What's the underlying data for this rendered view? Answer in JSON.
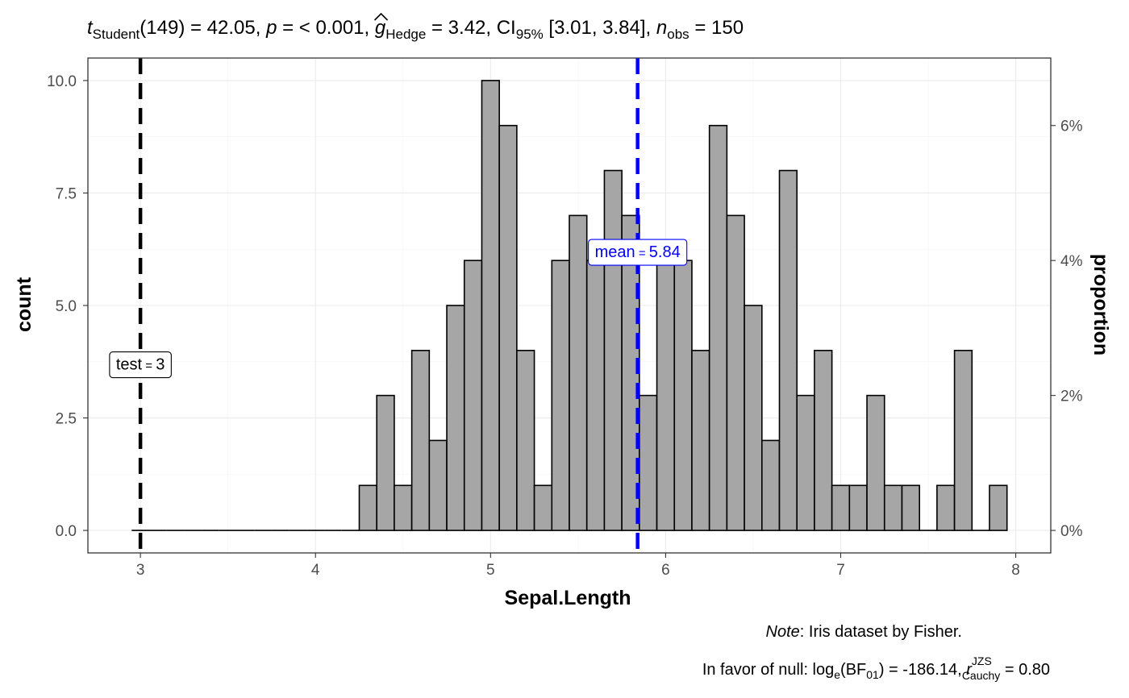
{
  "chart_data": {
    "type": "bar",
    "subtitle": {
      "t_prefix": "t",
      "t_sub": "Student",
      "t_stat": "(149) = 42.05, ",
      "p_label": "p",
      "p_value": " = < 0.001, ",
      "g_label": "g",
      "g_sub": "Hedge",
      "g_value": " = 3.42, CI",
      "ci_sub": "95%",
      "ci_value": " [3.01, 3.84], ",
      "n_label": "n",
      "n_sub": "obs",
      "n_value": " = 150"
    },
    "xlabel": "Sepal.Length",
    "ylabel": "count",
    "y2label": "proportion",
    "xlim": [
      2.7,
      8.2
    ],
    "ylim": [
      -0.5,
      10.5
    ],
    "x_ticks": [
      3,
      4,
      5,
      6,
      7,
      8
    ],
    "x_tick_labels": [
      "3",
      "4",
      "5",
      "6",
      "7",
      "8"
    ],
    "y_ticks": [
      0,
      2.5,
      5,
      7.5,
      10
    ],
    "y_tick_labels": [
      "0.0",
      "2.5",
      "5.0",
      "7.5",
      "10.0"
    ],
    "y2_ticks": [
      0,
      0.02,
      0.04,
      0.06
    ],
    "y2_tick_labels": [
      "0%",
      "2%",
      "4%",
      "6%"
    ],
    "n_obs": 150,
    "bin_width": 0.1,
    "bins": [
      {
        "x": 3.0,
        "count": 0
      },
      {
        "x": 3.1,
        "count": 0
      },
      {
        "x": 3.2,
        "count": 0
      },
      {
        "x": 3.3,
        "count": 0
      },
      {
        "x": 3.4,
        "count": 0
      },
      {
        "x": 3.5,
        "count": 0
      },
      {
        "x": 3.6,
        "count": 0
      },
      {
        "x": 3.7,
        "count": 0
      },
      {
        "x": 3.8,
        "count": 0
      },
      {
        "x": 3.9,
        "count": 0
      },
      {
        "x": 4.0,
        "count": 0
      },
      {
        "x": 4.1,
        "count": 0
      },
      {
        "x": 4.2,
        "count": 0
      },
      {
        "x": 4.3,
        "count": 1
      },
      {
        "x": 4.4,
        "count": 3
      },
      {
        "x": 4.5,
        "count": 1
      },
      {
        "x": 4.6,
        "count": 4
      },
      {
        "x": 4.7,
        "count": 2
      },
      {
        "x": 4.8,
        "count": 5
      },
      {
        "x": 4.9,
        "count": 6
      },
      {
        "x": 5.0,
        "count": 10
      },
      {
        "x": 5.1,
        "count": 9
      },
      {
        "x": 5.2,
        "count": 4
      },
      {
        "x": 5.3,
        "count": 1
      },
      {
        "x": 5.4,
        "count": 6
      },
      {
        "x": 5.5,
        "count": 7
      },
      {
        "x": 5.6,
        "count": 6
      },
      {
        "x": 5.7,
        "count": 8
      },
      {
        "x": 5.8,
        "count": 7
      },
      {
        "x": 5.9,
        "count": 3
      },
      {
        "x": 6.0,
        "count": 6
      },
      {
        "x": 6.1,
        "count": 6
      },
      {
        "x": 6.2,
        "count": 4
      },
      {
        "x": 6.3,
        "count": 9
      },
      {
        "x": 6.4,
        "count": 7
      },
      {
        "x": 6.5,
        "count": 5
      },
      {
        "x": 6.6,
        "count": 2
      },
      {
        "x": 6.7,
        "count": 8
      },
      {
        "x": 6.8,
        "count": 3
      },
      {
        "x": 6.9,
        "count": 4
      },
      {
        "x": 7.0,
        "count": 1
      },
      {
        "x": 7.1,
        "count": 1
      },
      {
        "x": 7.2,
        "count": 3
      },
      {
        "x": 7.3,
        "count": 1
      },
      {
        "x": 7.4,
        "count": 1
      },
      {
        "x": 7.5,
        "count": 0
      },
      {
        "x": 7.6,
        "count": 1
      },
      {
        "x": 7.7,
        "count": 4
      },
      {
        "x": 7.8,
        "count": 0
      },
      {
        "x": 7.9,
        "count": 1
      }
    ],
    "reference_lines": [
      {
        "value": 3,
        "label_name": "test",
        "label_value": "3",
        "color": "#000000"
      },
      {
        "value": 5.84,
        "label_name": "mean",
        "label_value": "5.84",
        "color": "#0000ff"
      }
    ],
    "caption": {
      "note_label": "Note",
      "note_text": ": Iris dataset by Fisher.",
      "bf_prefix": "In favor of null: log",
      "bf_log_sub": "e",
      "bf_mid": "(BF",
      "bf_sub": "01",
      "bf_value": ") = -186.14, ",
      "r_label": "r",
      "r_sup": "JZS",
      "r_sub": "Cauchy",
      "r_value": " = 0.80"
    },
    "grid": true,
    "colors": {
      "bar_fill": "#a6a6a6",
      "test_line": "#000000",
      "mean_line": "#0000ff"
    }
  }
}
